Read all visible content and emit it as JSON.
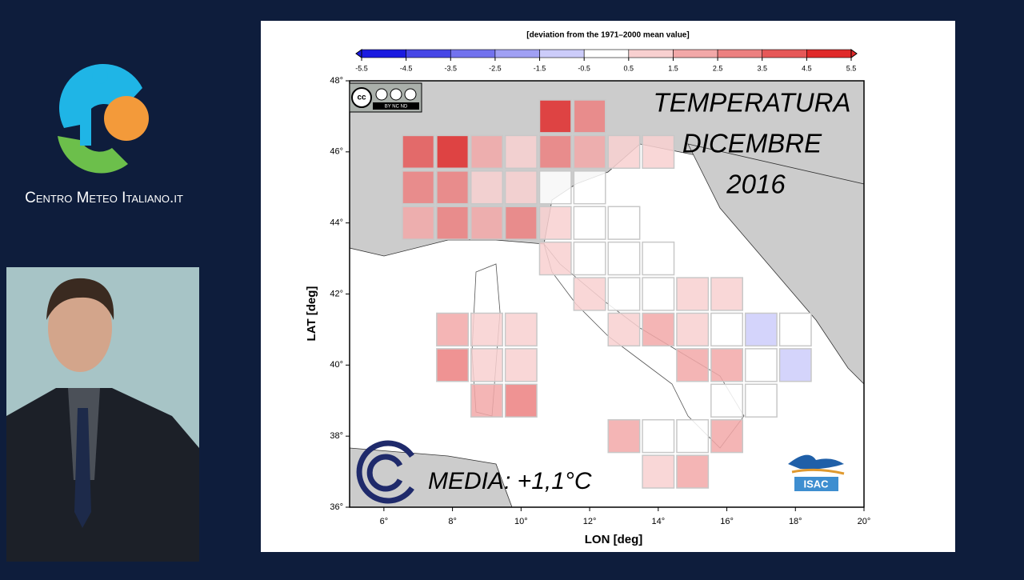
{
  "brand": {
    "name": "Centro Meteo Italiano.it"
  },
  "map": {
    "colorbar_label": "[deviation from the 1971–2000 mean value]",
    "colorbar_ticks": [
      -5.5,
      -4.5,
      -3.5,
      -2.5,
      -1.5,
      -0.5,
      0.5,
      1.5,
      2.5,
      3.5,
      4.5,
      5.5
    ],
    "colorbar_colors": [
      "#1a1ae0",
      "#4646e6",
      "#7272ee",
      "#a0a0f4",
      "#ccccfa",
      "#ffffff",
      "#f8d0d0",
      "#f2a8a8",
      "#ec8080",
      "#e65858",
      "#e02a2a"
    ],
    "title_lines": [
      "TEMPERATURA",
      "DICEMBRE",
      "2016"
    ],
    "mean_label": "MEDIA: +1,1°C",
    "x_label": "LON [deg]",
    "y_label": "LAT [deg]",
    "xlim": [
      5,
      20
    ],
    "ylim": [
      36,
      48
    ],
    "xticks": [
      {
        "value": 6,
        "label": "6°"
      },
      {
        "value": 8,
        "label": "8°"
      },
      {
        "value": 10,
        "label": "10°"
      },
      {
        "value": 12,
        "label": "12°"
      },
      {
        "value": 14,
        "label": "14°"
      },
      {
        "value": 16,
        "label": "16°"
      },
      {
        "value": 18,
        "label": "18°"
      },
      {
        "value": 20,
        "label": "20°"
      }
    ],
    "yticks": [
      {
        "value": 36,
        "label": "36°"
      },
      {
        "value": 38,
        "label": "38°"
      },
      {
        "value": 40,
        "label": "40°"
      },
      {
        "value": 42,
        "label": "42°"
      },
      {
        "value": 44,
        "label": "44°"
      },
      {
        "value": 46,
        "label": "46°"
      },
      {
        "value": 48,
        "label": "48°"
      }
    ],
    "cells": [
      {
        "lon": 11,
        "lat": 47,
        "value": 5
      },
      {
        "lon": 12,
        "lat": 47,
        "value": 3
      },
      {
        "lon": 7,
        "lat": 46,
        "value": 4
      },
      {
        "lon": 8,
        "lat": 46,
        "value": 5
      },
      {
        "lon": 9,
        "lat": 46,
        "value": 2
      },
      {
        "lon": 10,
        "lat": 46,
        "value": 1
      },
      {
        "lon": 11,
        "lat": 46,
        "value": 3
      },
      {
        "lon": 12,
        "lat": 46,
        "value": 2
      },
      {
        "lon": 13,
        "lat": 46,
        "value": 1
      },
      {
        "lon": 14,
        "lat": 46,
        "value": 1
      },
      {
        "lon": 7,
        "lat": 45,
        "value": 3
      },
      {
        "lon": 8,
        "lat": 45,
        "value": 3
      },
      {
        "lon": 9,
        "lat": 45,
        "value": 1
      },
      {
        "lon": 10,
        "lat": 45,
        "value": 1
      },
      {
        "lon": 11,
        "lat": 45,
        "value": 0
      },
      {
        "lon": 12,
        "lat": 45,
        "value": 0
      },
      {
        "lon": 7,
        "lat": 44,
        "value": 2
      },
      {
        "lon": 8,
        "lat": 44,
        "value": 3
      },
      {
        "lon": 9,
        "lat": 44,
        "value": 2
      },
      {
        "lon": 10,
        "lat": 44,
        "value": 3
      },
      {
        "lon": 11,
        "lat": 44,
        "value": 1
      },
      {
        "lon": 12,
        "lat": 44,
        "value": 0
      },
      {
        "lon": 13,
        "lat": 44,
        "value": 0
      },
      {
        "lon": 11,
        "lat": 43,
        "value": 1
      },
      {
        "lon": 12,
        "lat": 43,
        "value": 0
      },
      {
        "lon": 13,
        "lat": 43,
        "value": 0
      },
      {
        "lon": 14,
        "lat": 43,
        "value": 0
      },
      {
        "lon": 12,
        "lat": 42,
        "value": 1
      },
      {
        "lon": 13,
        "lat": 42,
        "value": 0
      },
      {
        "lon": 14,
        "lat": 42,
        "value": 0
      },
      {
        "lon": 15,
        "lat": 42,
        "value": 1
      },
      {
        "lon": 16,
        "lat": 42,
        "value": 1
      },
      {
        "lon": 8,
        "lat": 41,
        "value": 2
      },
      {
        "lon": 9,
        "lat": 41,
        "value": 1
      },
      {
        "lon": 10,
        "lat": 41,
        "value": 1
      },
      {
        "lon": 13,
        "lat": 41,
        "value": 1
      },
      {
        "lon": 14,
        "lat": 41,
        "value": 2
      },
      {
        "lon": 15,
        "lat": 41,
        "value": 1
      },
      {
        "lon": 16,
        "lat": 41,
        "value": 0
      },
      {
        "lon": 17,
        "lat": 41,
        "value": -1
      },
      {
        "lon": 18,
        "lat": 41,
        "value": 0
      },
      {
        "lon": 8,
        "lat": 40,
        "value": 3
      },
      {
        "lon": 9,
        "lat": 40,
        "value": 1
      },
      {
        "lon": 10,
        "lat": 40,
        "value": 1
      },
      {
        "lon": 15,
        "lat": 40,
        "value": 2
      },
      {
        "lon": 16,
        "lat": 40,
        "value": 2
      },
      {
        "lon": 17,
        "lat": 40,
        "value": 0
      },
      {
        "lon": 18,
        "lat": 40,
        "value": -1
      },
      {
        "lon": 9,
        "lat": 39,
        "value": 2
      },
      {
        "lon": 10,
        "lat": 39,
        "value": 3
      },
      {
        "lon": 16,
        "lat": 39,
        "value": 0
      },
      {
        "lon": 17,
        "lat": 39,
        "value": 0
      },
      {
        "lon": 13,
        "lat": 38,
        "value": 2
      },
      {
        "lon": 14,
        "lat": 38,
        "value": 0
      },
      {
        "lon": 15,
        "lat": 38,
        "value": 0
      },
      {
        "lon": 16,
        "lat": 38,
        "value": 2
      },
      {
        "lon": 14,
        "lat": 37,
        "value": 1
      },
      {
        "lon": 15,
        "lat": 37,
        "value": 2
      }
    ],
    "logos": {
      "cc": "cc",
      "cc_terms": "BY NC ND",
      "isac": "ISAC"
    }
  }
}
